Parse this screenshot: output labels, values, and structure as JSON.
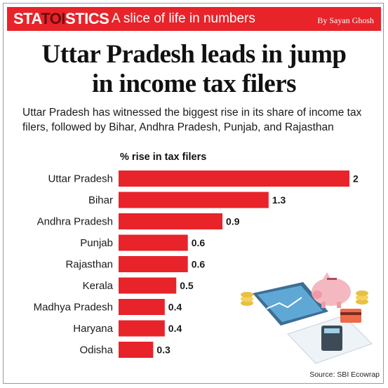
{
  "header": {
    "brand_prefix": "STA",
    "brand_mid": "TOI",
    "brand_suffix": "STICS",
    "tagline": "A slice of life in numbers",
    "byline": "By Sayan Ghosh"
  },
  "headline_line1": "Uttar Pradesh leads in jump",
  "headline_line2": "in income tax filers",
  "subtitle": "Uttar Pradesh has witnessed the biggest rise in its share of income tax filers, followed by Bihar, Andhra Pradesh, Punjab, and Rajasthan",
  "source": "Source: SBI Ecowrap",
  "colors": {
    "accent": "#e8232a",
    "bar": "#e8232a"
  },
  "chart_data": {
    "type": "bar",
    "orientation": "horizontal",
    "title": "% rise in tax filers",
    "categories": [
      "Uttar Pradesh",
      "Bihar",
      "Andhra Pradesh",
      "Punjab",
      "Rajasthan",
      "Kerala",
      "Madhya Pradesh",
      "Haryana",
      "Odisha"
    ],
    "values": [
      2,
      1.3,
      0.9,
      0.6,
      0.6,
      0.5,
      0.4,
      0.4,
      0.3
    ],
    "value_labels": [
      "2",
      "1.3",
      "0.9",
      "0.6",
      "0.6",
      "0.5",
      "0.4",
      "0.4",
      "0.3"
    ],
    "xlim": [
      0,
      2
    ],
    "grid": false,
    "legend": "none"
  }
}
